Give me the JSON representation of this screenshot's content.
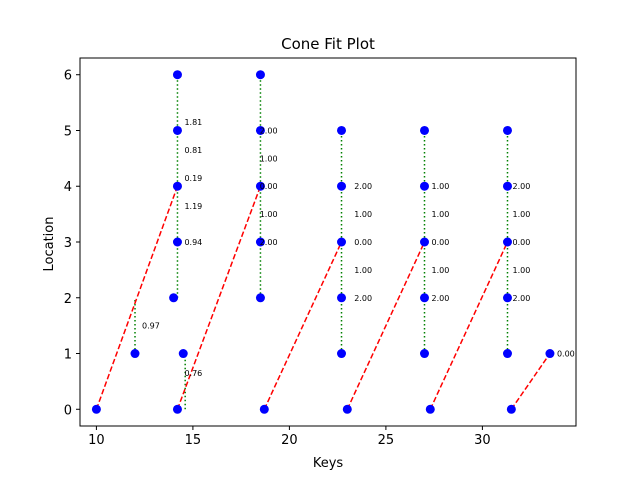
{
  "chart_data": {
    "type": "scatter",
    "title": "Cone Fit Plot",
    "xlabel": "Keys",
    "ylabel": "Location",
    "xlim": [
      9.15,
      34.85
    ],
    "ylim": [
      -0.3,
      6.3
    ],
    "xticks": [
      10,
      15,
      20,
      25,
      30
    ],
    "yticks": [
      0,
      1,
      2,
      3,
      4,
      5,
      6
    ],
    "grid": false,
    "colors": {
      "points": "#0000ff",
      "fit_lines": "#ff0000",
      "interval_lines": "#008000",
      "frame": "#000000"
    },
    "points": [
      {
        "x": 10.0,
        "y": 0
      },
      {
        "x": 12.0,
        "y": 1
      },
      {
        "x": 14.0,
        "y": 2
      },
      {
        "x": 14.2,
        "y": 3
      },
      {
        "x": 14.2,
        "y": 4
      },
      {
        "x": 14.2,
        "y": 5
      },
      {
        "x": 14.2,
        "y": 6
      },
      {
        "x": 14.2,
        "y": 0
      },
      {
        "x": 14.5,
        "y": 1
      },
      {
        "x": 18.5,
        "y": 2
      },
      {
        "x": 18.5,
        "y": 3
      },
      {
        "x": 18.5,
        "y": 4
      },
      {
        "x": 18.5,
        "y": 5
      },
      {
        "x": 18.5,
        "y": 6
      },
      {
        "x": 18.7,
        "y": 0
      },
      {
        "x": 22.7,
        "y": 1
      },
      {
        "x": 22.7,
        "y": 2
      },
      {
        "x": 22.7,
        "y": 3
      },
      {
        "x": 22.7,
        "y": 4
      },
      {
        "x": 22.7,
        "y": 5
      },
      {
        "x": 23.0,
        "y": 0
      },
      {
        "x": 27.0,
        "y": 1
      },
      {
        "x": 27.0,
        "y": 2
      },
      {
        "x": 27.0,
        "y": 3
      },
      {
        "x": 27.0,
        "y": 4
      },
      {
        "x": 27.0,
        "y": 5
      },
      {
        "x": 27.3,
        "y": 0
      },
      {
        "x": 31.3,
        "y": 1
      },
      {
        "x": 31.3,
        "y": 2
      },
      {
        "x": 31.3,
        "y": 3
      },
      {
        "x": 31.3,
        "y": 4
      },
      {
        "x": 31.3,
        "y": 5
      },
      {
        "x": 31.5,
        "y": 0
      },
      {
        "x": 33.5,
        "y": 1
      }
    ],
    "fit_lines": [
      {
        "x": [
          10.0,
          14.2
        ],
        "y": [
          0,
          4
        ]
      },
      {
        "x": [
          14.2,
          18.5
        ],
        "y": [
          0,
          4
        ]
      },
      {
        "x": [
          18.7,
          22.7
        ],
        "y": [
          0,
          3
        ]
      },
      {
        "x": [
          23.0,
          27.0
        ],
        "y": [
          0,
          3
        ]
      },
      {
        "x": [
          27.3,
          31.3
        ],
        "y": [
          0,
          3
        ]
      },
      {
        "x": [
          31.5,
          33.5
        ],
        "y": [
          0,
          1
        ]
      }
    ],
    "intervals": [
      {
        "x": 12.0,
        "y": [
          1,
          2
        ]
      },
      {
        "x": 14.2,
        "y": [
          2,
          6
        ]
      },
      {
        "x": 14.6,
        "y": [
          0,
          1
        ]
      },
      {
        "x": 18.5,
        "y": [
          2,
          6
        ]
      },
      {
        "x": 22.7,
        "y": [
          1,
          5
        ]
      },
      {
        "x": 27.0,
        "y": [
          1,
          5
        ]
      },
      {
        "x": 31.3,
        "y": [
          1,
          5
        ]
      }
    ],
    "annotations": [
      {
        "text": "0.97",
        "x": 12.0,
        "y": 1.5
      },
      {
        "text": "0.76",
        "x": 14.2,
        "y": 0.65
      },
      {
        "text": "0.94",
        "x": 14.2,
        "y": 3.0
      },
      {
        "text": "1.19",
        "x": 14.2,
        "y": 3.65
      },
      {
        "text": "0.19",
        "x": 14.2,
        "y": 4.15
      },
      {
        "text": "0.81",
        "x": 14.2,
        "y": 4.65
      },
      {
        "text": "1.81",
        "x": 14.2,
        "y": 5.15
      },
      {
        "text": "2.00",
        "x": 18.1,
        "y": 3.0
      },
      {
        "text": "1.00",
        "x": 18.1,
        "y": 3.5
      },
      {
        "text": "0.00",
        "x": 18.1,
        "y": 4.0
      },
      {
        "text": "1.00",
        "x": 18.1,
        "y": 4.5
      },
      {
        "text": "2.00",
        "x": 18.1,
        "y": 5.0
      },
      {
        "text": "2.00",
        "x": 23.0,
        "y": 2.0
      },
      {
        "text": "1.00",
        "x": 23.0,
        "y": 2.5
      },
      {
        "text": "0.00",
        "x": 23.0,
        "y": 3.0
      },
      {
        "text": "1.00",
        "x": 23.0,
        "y": 3.5
      },
      {
        "text": "2.00",
        "x": 23.0,
        "y": 4.0
      },
      {
        "text": "2.00",
        "x": 27.0,
        "y": 2.0
      },
      {
        "text": "1.00",
        "x": 27.0,
        "y": 2.5
      },
      {
        "text": "0.00",
        "x": 27.0,
        "y": 3.0
      },
      {
        "text": "1.00",
        "x": 27.0,
        "y": 3.5
      },
      {
        "text": "1.00",
        "x": 27.0,
        "y": 4.0
      },
      {
        "text": "2.00",
        "x": 31.2,
        "y": 2.0
      },
      {
        "text": "1.00",
        "x": 31.2,
        "y": 2.5
      },
      {
        "text": "0.00",
        "x": 31.2,
        "y": 3.0
      },
      {
        "text": "1.00",
        "x": 31.2,
        "y": 3.5
      },
      {
        "text": "2.00",
        "x": 31.2,
        "y": 4.0
      },
      {
        "text": "0.00",
        "x": 33.5,
        "y": 1.0
      }
    ]
  }
}
